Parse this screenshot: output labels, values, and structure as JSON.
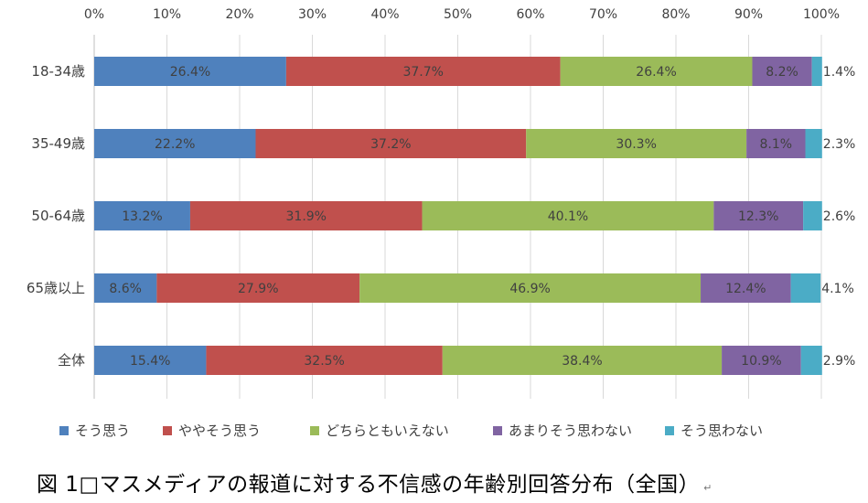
{
  "chart_data": {
    "type": "stacked-bar-horizontal",
    "title": "",
    "x_ticks": [
      "0%",
      "10%",
      "20%",
      "30%",
      "40%",
      "50%",
      "60%",
      "70%",
      "80%",
      "90%",
      "100%"
    ],
    "xlim": [
      0,
      100
    ],
    "categories": [
      "18-34歳",
      "35-49歳",
      "50-64歳",
      "65歳以上",
      "全体"
    ],
    "series": [
      {
        "name": "そう思う",
        "color": "#4f81bd",
        "values": [
          26.4,
          22.2,
          13.2,
          8.6,
          15.4
        ],
        "labels": [
          "26.4%",
          "22.2%",
          "13.2%",
          "8.6%",
          "15.4%"
        ]
      },
      {
        "name": "ややそう思う",
        "color": "#c0504d",
        "values": [
          37.7,
          37.2,
          31.9,
          27.9,
          32.5
        ],
        "labels": [
          "37.7%",
          "37.2%",
          "31.9%",
          "27.9%",
          "32.5%"
        ]
      },
      {
        "name": "どちらともいえない",
        "color": "#9bbb59",
        "values": [
          26.4,
          30.3,
          40.1,
          46.9,
          38.4
        ],
        "labels": [
          "26.4%",
          "30.3%",
          "40.1%",
          "46.9%",
          "38.4%"
        ]
      },
      {
        "name": "あまりそう思わない",
        "color": "#8064a2",
        "values": [
          8.2,
          8.1,
          12.3,
          12.4,
          10.9
        ],
        "labels": [
          "8.2%",
          "8.1%",
          "12.3%",
          "12.4%",
          "10.9%"
        ]
      },
      {
        "name": "そう思わない",
        "color": "#4bacc6",
        "values": [
          1.4,
          2.3,
          2.6,
          4.1,
          2.9
        ],
        "labels": [
          "1.4%",
          "2.3%",
          "2.6%",
          "4.1%",
          "2.9%"
        ]
      }
    ],
    "grid": true,
    "legend_position": "bottom"
  },
  "caption": "図 1□マスメディアの報道に対する不信感の年齢別回答分布（全国）",
  "caption_mark": "↵"
}
